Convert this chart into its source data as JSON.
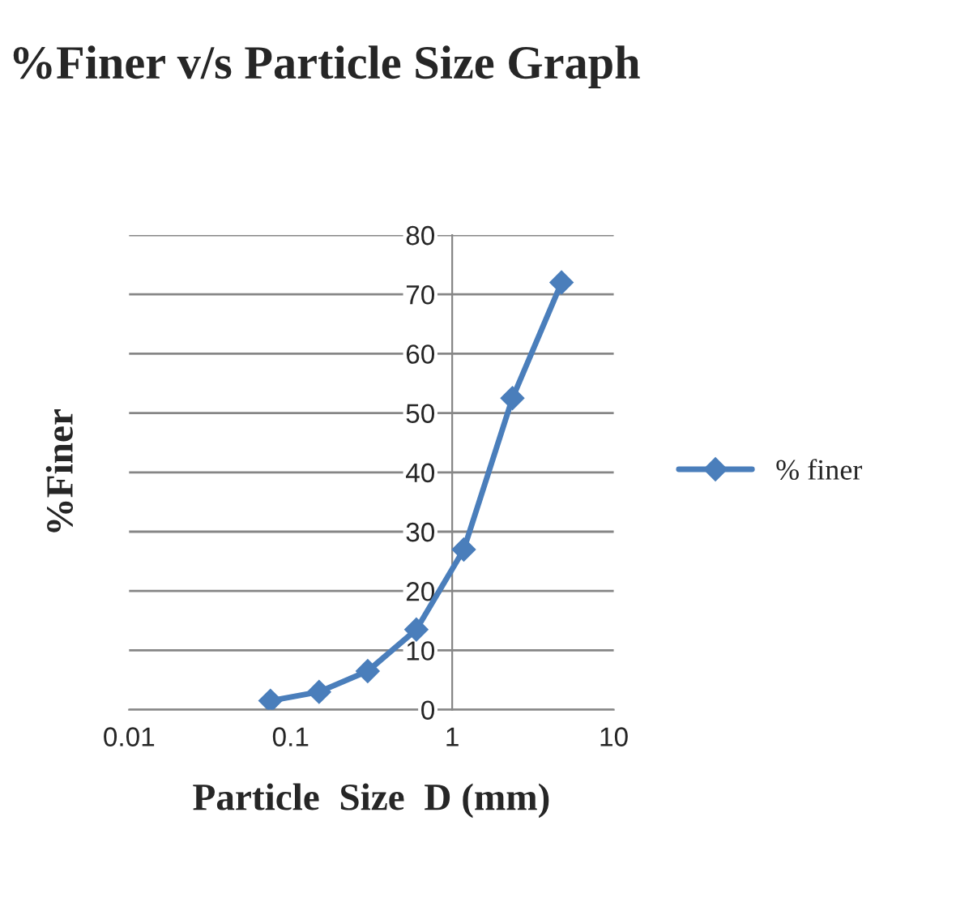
{
  "chart_data": {
    "type": "line",
    "title": "%Finer v/s Particle Size Graph",
    "xlabel": "Particle  Size  D (mm)",
    "ylabel": "%Finer",
    "x": [
      0.075,
      0.15,
      0.3,
      0.6,
      1.18,
      2.36,
      4.75
    ],
    "series": [
      {
        "name": "% finer",
        "color": "#4a7ebb",
        "values": [
          1.5,
          3,
          6.5,
          13.5,
          27,
          52.5,
          72
        ]
      }
    ],
    "log": "x",
    "xlim": [
      0.01,
      10
    ],
    "xticks": [
      0.01,
      0.1,
      1,
      10
    ],
    "ylim": [
      0,
      80
    ],
    "yticks": [
      0,
      10,
      20,
      30,
      40,
      50,
      60,
      70,
      80
    ],
    "grid": "y",
    "legend": "right",
    "marker": "diamond",
    "line_style": "solid"
  }
}
